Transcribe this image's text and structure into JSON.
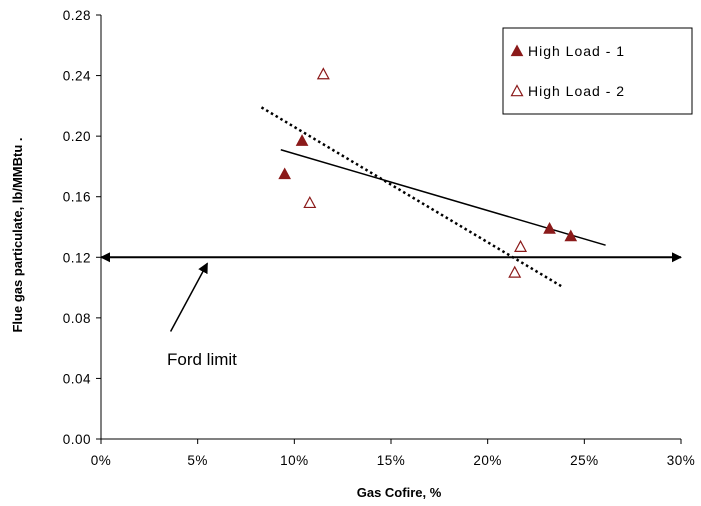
{
  "chart_data": {
    "type": "scatter",
    "xlabel": "Gas Cofire, %",
    "ylabel": "Flue gas particulate, lb/MMBtu  .",
    "xlim": [
      0,
      30
    ],
    "ylim": [
      0,
      0.28
    ],
    "x_ticks": [
      "0%",
      "5%",
      "10%",
      "15%",
      "20%",
      "25%",
      "30%"
    ],
    "y_ticks": [
      "0.00",
      "0.04",
      "0.08",
      "0.12",
      "0.16",
      "0.20",
      "0.24",
      "0.28"
    ],
    "grid": false,
    "legend_position": "top-right",
    "series": [
      {
        "name": "High Load - 1",
        "marker": "filled-triangle",
        "color": "#8B1A1A",
        "points": [
          [
            9.5,
            0.175
          ],
          [
            10.4,
            0.197
          ],
          [
            23.2,
            0.139
          ],
          [
            24.3,
            0.134
          ]
        ],
        "trendline": {
          "style": "solid",
          "points": [
            [
              9.3,
              0.191
            ],
            [
              26.1,
              0.128
            ]
          ]
        }
      },
      {
        "name": "High Load - 2",
        "marker": "open-triangle",
        "color": "#8B1A1A",
        "points": [
          [
            11.5,
            0.241
          ],
          [
            10.8,
            0.156
          ],
          [
            21.4,
            0.11
          ],
          [
            21.7,
            0.127
          ]
        ],
        "trendline": {
          "style": "dotted",
          "points": [
            [
              8.3,
              0.219
            ],
            [
              23.8,
              0.101
            ]
          ]
        }
      }
    ],
    "reference_line": {
      "y": 0.12,
      "style": "double-arrow",
      "x_range": [
        0,
        30
      ]
    },
    "annotation": {
      "text": "Ford limit",
      "arrow_from": [
        3.6,
        0.071
      ],
      "arrow_to": [
        5.5,
        0.116
      ]
    }
  }
}
